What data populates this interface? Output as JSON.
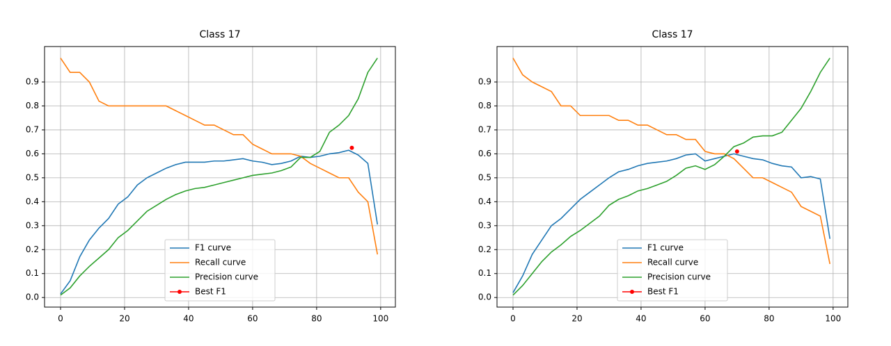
{
  "chart_data": [
    {
      "type": "line",
      "title": "Class 17",
      "grid": true,
      "legend": "lower center",
      "xlim": [
        -5,
        104.6
      ],
      "ylim": [
        -0.04,
        1.048
      ],
      "xticks": [
        0,
        20,
        40,
        60,
        80,
        100
      ],
      "yticks": [
        {
          "value": 0,
          "label": "0.0"
        },
        0.1,
        0.2,
        0.3,
        0.4,
        0.5,
        0.6,
        0.7,
        0.8,
        0.9
      ],
      "x": [
        0,
        3,
        6,
        9,
        12,
        15,
        18,
        21,
        24,
        27,
        30,
        33,
        36,
        39,
        42,
        45,
        48,
        51,
        54,
        57,
        60,
        63,
        66,
        69,
        72,
        75,
        78,
        81,
        84,
        87,
        90,
        93,
        96,
        99
      ],
      "series": [
        {
          "name": "F1 curve",
          "color": "#1f77b4",
          "values": [
            0.015,
            0.07,
            0.17,
            0.24,
            0.29,
            0.33,
            0.39,
            0.42,
            0.47,
            0.5,
            0.52,
            0.54,
            0.555,
            0.565,
            0.565,
            0.565,
            0.57,
            0.57,
            0.575,
            0.58,
            0.57,
            0.565,
            0.555,
            0.56,
            0.57,
            0.59,
            0.585,
            0.59,
            0.6,
            0.605,
            0.615,
            0.595,
            0.56,
            0.305
          ]
        },
        {
          "name": "Recall curve",
          "color": "#ff7f0e",
          "values": [
            1.0,
            0.94,
            0.94,
            0.9,
            0.82,
            0.8,
            0.8,
            0.8,
            0.8,
            0.8,
            0.8,
            0.8,
            0.78,
            0.76,
            0.74,
            0.72,
            0.72,
            0.7,
            0.68,
            0.68,
            0.64,
            0.62,
            0.6,
            0.6,
            0.6,
            0.59,
            0.56,
            0.54,
            0.52,
            0.5,
            0.5,
            0.44,
            0.4,
            0.18
          ]
        },
        {
          "name": "Precision curve",
          "color": "#2ca02c",
          "values": [
            0.01,
            0.04,
            0.09,
            0.13,
            0.165,
            0.2,
            0.25,
            0.28,
            0.32,
            0.36,
            0.385,
            0.41,
            0.43,
            0.445,
            0.455,
            0.46,
            0.47,
            0.48,
            0.49,
            0.5,
            0.51,
            0.515,
            0.52,
            0.53,
            0.545,
            0.585,
            0.585,
            0.61,
            0.69,
            0.72,
            0.76,
            0.83,
            0.94,
            1.0
          ]
        },
        {
          "name": "Best F1",
          "color": "#ff0000",
          "marker": "o",
          "x": [
            91
          ],
          "values": [
            0.625
          ]
        }
      ]
    },
    {
      "type": "line",
      "title": "Class 17",
      "grid": true,
      "legend": "lower center",
      "xlim": [
        -5,
        104.6
      ],
      "ylim": [
        -0.04,
        1.048
      ],
      "xticks": [
        0,
        20,
        40,
        60,
        80,
        100
      ],
      "yticks": [
        {
          "value": 0,
          "label": "0.0"
        },
        0.1,
        0.2,
        0.3,
        0.4,
        0.5,
        0.6,
        0.7,
        0.8,
        0.9
      ],
      "x": [
        0,
        3,
        6,
        9,
        12,
        15,
        18,
        21,
        24,
        27,
        30,
        33,
        36,
        39,
        42,
        45,
        48,
        51,
        54,
        57,
        60,
        63,
        66,
        69,
        72,
        75,
        78,
        81,
        84,
        87,
        90,
        93,
        96,
        99
      ],
      "series": [
        {
          "name": "F1 curve",
          "color": "#1f77b4",
          "values": [
            0.02,
            0.09,
            0.18,
            0.24,
            0.3,
            0.33,
            0.37,
            0.41,
            0.44,
            0.47,
            0.5,
            0.525,
            0.535,
            0.55,
            0.56,
            0.565,
            0.57,
            0.58,
            0.595,
            0.6,
            0.57,
            0.58,
            0.59,
            0.6,
            0.59,
            0.58,
            0.575,
            0.56,
            0.55,
            0.545,
            0.5,
            0.505,
            0.495,
            0.245
          ]
        },
        {
          "name": "Recall curve",
          "color": "#ff7f0e",
          "values": [
            1.0,
            0.93,
            0.9,
            0.88,
            0.86,
            0.8,
            0.8,
            0.76,
            0.76,
            0.76,
            0.76,
            0.74,
            0.74,
            0.72,
            0.72,
            0.7,
            0.68,
            0.68,
            0.66,
            0.66,
            0.61,
            0.6,
            0.6,
            0.58,
            0.54,
            0.5,
            0.5,
            0.48,
            0.46,
            0.44,
            0.38,
            0.36,
            0.34,
            0.14
          ]
        },
        {
          "name": "Precision curve",
          "color": "#2ca02c",
          "values": [
            0.01,
            0.05,
            0.1,
            0.15,
            0.19,
            0.22,
            0.255,
            0.28,
            0.31,
            0.34,
            0.385,
            0.41,
            0.425,
            0.445,
            0.455,
            0.47,
            0.485,
            0.51,
            0.54,
            0.55,
            0.535,
            0.555,
            0.59,
            0.63,
            0.645,
            0.67,
            0.675,
            0.675,
            0.69,
            0.74,
            0.79,
            0.86,
            0.94,
            1.0
          ]
        },
        {
          "name": "Best F1",
          "color": "#ff0000",
          "marker": "o",
          "x": [
            70
          ],
          "values": [
            0.61
          ]
        }
      ]
    }
  ]
}
